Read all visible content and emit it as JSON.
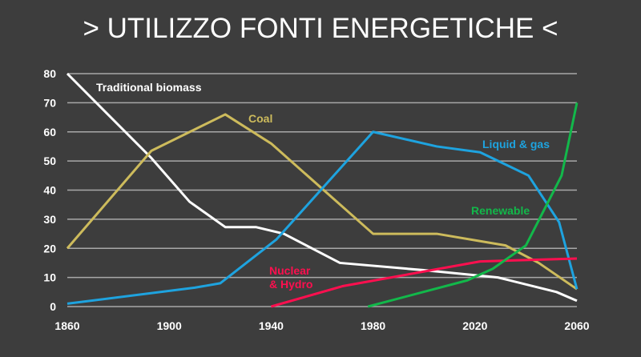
{
  "chart_data": {
    "type": "line",
    "title": "> UTILIZZO FONTI ENERGETICHE <",
    "xlabel": "",
    "ylabel": "",
    "xlim": [
      1860,
      2060
    ],
    "ylim": [
      0,
      80
    ],
    "xticks": [
      1860,
      1900,
      1940,
      1980,
      2020,
      2060
    ],
    "yticks": [
      0,
      10,
      20,
      30,
      40,
      50,
      60,
      70,
      80
    ],
    "grid": "horizontal",
    "series": [
      {
        "name": "Traditional biomass",
        "color": "#ffffff",
        "x": [
          1860,
          1893,
          1908,
          1922,
          1934,
          1945,
          1967,
          2000,
          2029,
          2052,
          2060
        ],
        "y": [
          80,
          51,
          36,
          27.3,
          27.3,
          25,
          15,
          12.5,
          10,
          5,
          2
        ]
      },
      {
        "name": "Coal",
        "color": "#cdbb5c",
        "x": [
          1860,
          1893,
          1922,
          1940,
          1980,
          2005,
          2032,
          2045,
          2060
        ],
        "y": [
          20,
          53.5,
          66,
          56,
          25,
          25,
          21,
          15,
          6
        ]
      },
      {
        "name": "Liquid & gas",
        "color": "#1ea3df",
        "x": [
          1860,
          1910,
          1920,
          1942,
          1980,
          2005,
          2022,
          2041,
          2053,
          2060
        ],
        "y": [
          1,
          6.5,
          8,
          23,
          60,
          55,
          53,
          45,
          29,
          6
        ]
      },
      {
        "name": "Nuclear\n& Hydro",
        "color": "#ff0f4f",
        "x": [
          1940,
          1968,
          2022,
          2060
        ],
        "y": [
          0,
          7,
          15.5,
          16.5
        ]
      },
      {
        "name": "Renewable",
        "color": "#12b84a",
        "x": [
          1978,
          2017,
          2027,
          2040,
          2054,
          2060
        ],
        "y": [
          0,
          9,
          13,
          21,
          45,
          70
        ]
      }
    ]
  }
}
